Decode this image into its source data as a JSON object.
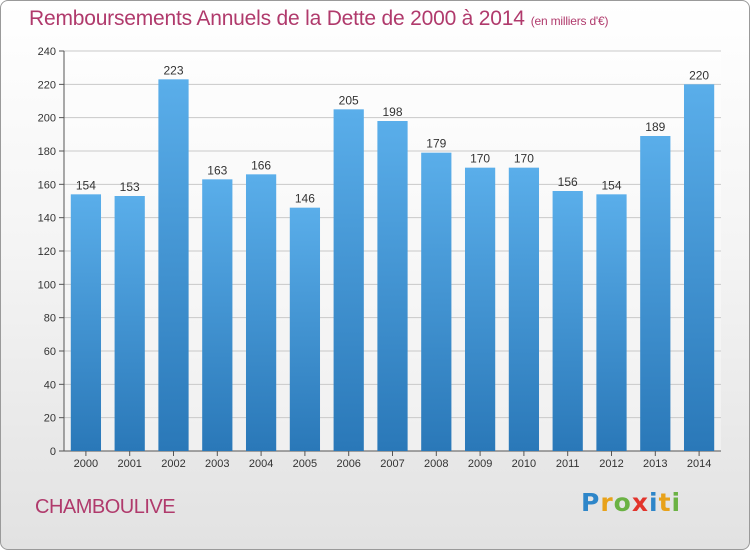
{
  "chart_data": {
    "type": "bar",
    "title": "Remboursements Annuels de la Dette de 2000 à 2014",
    "subtitle": "(en milliers d'€)",
    "categories": [
      "2000",
      "2001",
      "2002",
      "2003",
      "2004",
      "2005",
      "2006",
      "2007",
      "2008",
      "2009",
      "2010",
      "2011",
      "2012",
      "2013",
      "2014"
    ],
    "values": [
      154,
      153,
      223,
      163,
      166,
      146,
      205,
      198,
      179,
      170,
      170,
      156,
      154,
      189,
      220
    ],
    "ylim": [
      0,
      240
    ],
    "yticks": [
      0,
      20,
      40,
      60,
      80,
      100,
      120,
      140,
      160,
      180,
      200,
      220,
      240
    ],
    "grid": true,
    "colors": {
      "bar_top": "#5aaeea",
      "bar_bottom": "#2a78b8",
      "title": "#b03a6c"
    }
  },
  "place": "CHAMBOULIVE",
  "logo": {
    "text": "Proxiti",
    "letters": [
      {
        "char": "P",
        "color": "#2e86c9"
      },
      {
        "char": "r",
        "color": "#e8a21a"
      },
      {
        "char": "o",
        "color": "#6bb244"
      },
      {
        "char": "x",
        "color": "#e2342c"
      },
      {
        "char": "i",
        "color": "#2e86c9"
      },
      {
        "char": "t",
        "color": "#e8a21a"
      },
      {
        "char": "i",
        "color": "#6bb244"
      }
    ]
  }
}
